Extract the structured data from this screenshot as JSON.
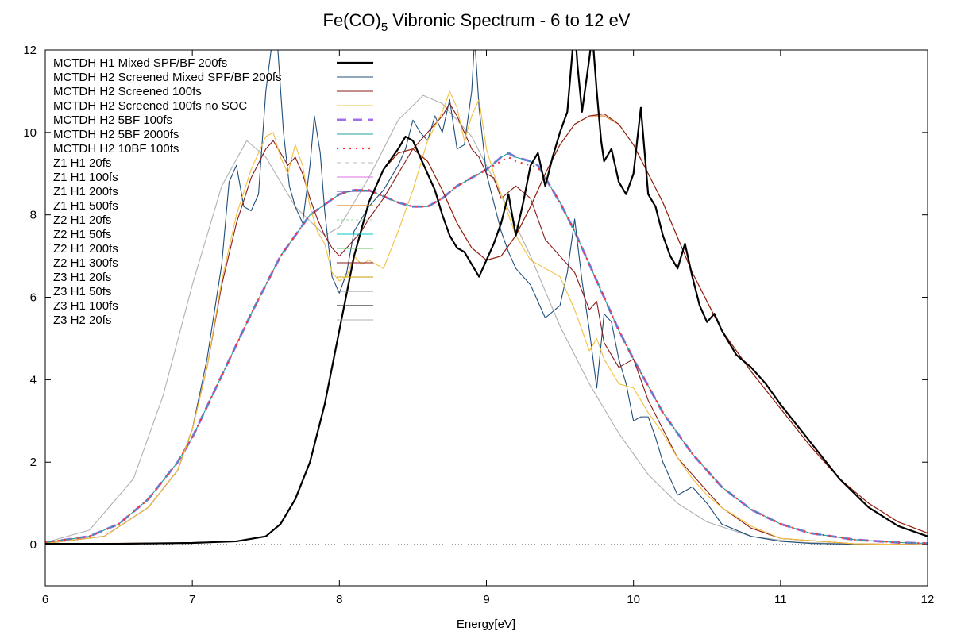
{
  "chart_data": {
    "type": "line",
    "title_main": "Fe(CO)",
    "title_sub": "5",
    "title_rest": " Vibronic Spectrum - 6 to 12 eV",
    "xlabel": "Energy[eV]",
    "ylabel": "",
    "xlim": [
      6,
      12
    ],
    "ylim": [
      -1,
      12
    ],
    "xticks": [
      6,
      7,
      8,
      9,
      10,
      11,
      12
    ],
    "yticks": [
      0,
      2,
      4,
      6,
      8,
      10,
      12
    ],
    "grid": false,
    "legend_position": "top-left",
    "zero_line": true,
    "series": [
      {
        "name": "MCTDH H1 Mixed SPF/BF 200fs",
        "color": "#000000",
        "dash": "solid",
        "width": 2.2,
        "group": "H1",
        "x": [
          6.0,
          6.5,
          7.0,
          7.3,
          7.5,
          7.6,
          7.7,
          7.8,
          7.9,
          8.0,
          8.1,
          8.2,
          8.3,
          8.4,
          8.45,
          8.5,
          8.55,
          8.6,
          8.65,
          8.7,
          8.75,
          8.8,
          8.85,
          8.9,
          8.95,
          9.0,
          9.05,
          9.1,
          9.15,
          9.2,
          9.25,
          9.3,
          9.35,
          9.4,
          9.45,
          9.5,
          9.55,
          9.6,
          9.62,
          9.65,
          9.7,
          9.72,
          9.75,
          9.78,
          9.8,
          9.85,
          9.9,
          9.95,
          10.0,
          10.05,
          10.1,
          10.15,
          10.2,
          10.25,
          10.3,
          10.35,
          10.4,
          10.45,
          10.5,
          10.55,
          10.6,
          10.65,
          10.7,
          10.8,
          10.9,
          11.0,
          11.2,
          11.4,
          11.6,
          11.8,
          12.0
        ],
        "y": [
          0.02,
          0.02,
          0.04,
          0.08,
          0.2,
          0.5,
          1.1,
          2.0,
          3.4,
          5.2,
          7.0,
          8.3,
          9.1,
          9.6,
          9.9,
          9.8,
          9.4,
          9.0,
          8.6,
          8.0,
          7.5,
          7.2,
          7.1,
          6.8,
          6.5,
          6.9,
          7.3,
          7.8,
          8.5,
          7.5,
          8.3,
          9.2,
          9.5,
          8.7,
          9.4,
          10.0,
          10.5,
          12.6,
          11.6,
          10.5,
          11.8,
          12.4,
          11.0,
          9.8,
          9.3,
          9.6,
          8.8,
          8.5,
          9.0,
          10.6,
          8.5,
          8.2,
          7.5,
          7.0,
          6.7,
          7.3,
          6.5,
          5.8,
          5.4,
          5.6,
          5.2,
          4.9,
          4.6,
          4.3,
          3.9,
          3.4,
          2.5,
          1.6,
          0.9,
          0.45,
          0.2
        ]
      },
      {
        "name": "MCTDH H2 Screened Mixed SPF/BF 200fs",
        "color": "#1f4e79",
        "dash": "solid",
        "width": 1.1,
        "group": "H2",
        "x": [
          6.0,
          6.4,
          6.7,
          6.9,
          7.0,
          7.1,
          7.2,
          7.25,
          7.3,
          7.35,
          7.4,
          7.45,
          7.5,
          7.55,
          7.58,
          7.62,
          7.66,
          7.7,
          7.75,
          7.8,
          7.83,
          7.87,
          7.9,
          7.95,
          8.0,
          8.05,
          8.1,
          8.15,
          8.2,
          8.3,
          8.4,
          8.45,
          8.5,
          8.55,
          8.6,
          8.65,
          8.7,
          8.75,
          8.8,
          8.85,
          8.9,
          8.92,
          8.95,
          9.0,
          9.05,
          9.1,
          9.15,
          9.2,
          9.3,
          9.4,
          9.5,
          9.55,
          9.6,
          9.65,
          9.7,
          9.75,
          9.8,
          9.85,
          9.9,
          9.95,
          10.0,
          10.05,
          10.1,
          10.15,
          10.2,
          10.3,
          10.4,
          10.5,
          10.6,
          10.8,
          11.0,
          11.2,
          11.5,
          12.0
        ],
        "y": [
          0.03,
          0.2,
          0.9,
          1.8,
          2.8,
          4.5,
          6.8,
          8.8,
          9.2,
          8.2,
          8.1,
          8.5,
          11.0,
          12.4,
          12.1,
          10.0,
          8.7,
          8.2,
          7.8,
          9.2,
          10.4,
          9.5,
          8.1,
          6.5,
          6.1,
          6.6,
          7.6,
          7.9,
          8.2,
          8.6,
          9.2,
          9.6,
          10.3,
          10.0,
          9.8,
          10.4,
          10.0,
          10.8,
          9.6,
          9.7,
          11.0,
          12.3,
          10.6,
          9.0,
          8.3,
          7.6,
          7.1,
          6.7,
          6.3,
          5.5,
          5.8,
          6.6,
          7.9,
          6.4,
          5.2,
          3.8,
          5.6,
          5.4,
          4.5,
          3.9,
          3.0,
          3.1,
          3.1,
          2.6,
          2.0,
          1.2,
          1.4,
          1.0,
          0.5,
          0.2,
          0.08,
          0.03,
          0.01,
          0.0
        ]
      },
      {
        "name": "MCTDH H2 Screened 100fs",
        "color": "#8b1a1a",
        "dash": "solid",
        "width": 1.1,
        "group": "H2",
        "x": [
          6.0,
          6.4,
          6.7,
          6.9,
          7.0,
          7.1,
          7.2,
          7.3,
          7.4,
          7.5,
          7.55,
          7.6,
          7.65,
          7.7,
          7.75,
          7.8,
          7.85,
          7.9,
          7.95,
          8.0,
          8.05,
          8.1,
          8.15,
          8.2,
          8.3,
          8.4,
          8.5,
          8.6,
          8.7,
          8.75,
          8.8,
          8.85,
          8.9,
          8.95,
          9.0,
          9.05,
          9.1,
          9.2,
          9.3,
          9.4,
          9.5,
          9.6,
          9.7,
          9.75,
          9.8,
          9.9,
          10.0,
          10.1,
          10.2,
          10.3,
          10.4,
          10.5,
          10.6,
          10.8,
          11.0,
          11.5,
          12.0
        ],
        "y": [
          0.03,
          0.2,
          0.9,
          1.8,
          2.8,
          4.3,
          6.3,
          7.8,
          8.9,
          9.6,
          9.8,
          9.5,
          9.2,
          9.4,
          9.0,
          8.4,
          7.9,
          7.5,
          7.2,
          7.0,
          7.2,
          7.4,
          7.6,
          7.9,
          8.4,
          9.0,
          9.6,
          10.0,
          10.4,
          10.7,
          10.4,
          10.0,
          9.6,
          9.4,
          9.0,
          8.9,
          8.4,
          8.7,
          8.4,
          7.4,
          7.0,
          6.6,
          5.7,
          5.9,
          4.9,
          4.3,
          4.5,
          3.5,
          2.8,
          2.1,
          1.7,
          1.3,
          0.9,
          0.4,
          0.15,
          0.02,
          0.0
        ]
      },
      {
        "name": "MCTDH H2 Screened 100fs no SOC",
        "color": "#f2c040",
        "dash": "solid",
        "width": 1.1,
        "group": "H2",
        "x": [
          6.0,
          6.4,
          6.7,
          6.9,
          7.0,
          7.1,
          7.2,
          7.3,
          7.4,
          7.5,
          7.55,
          7.6,
          7.65,
          7.7,
          7.75,
          7.8,
          7.85,
          7.9,
          7.95,
          8.0,
          8.05,
          8.1,
          8.15,
          8.2,
          8.3,
          8.4,
          8.5,
          8.6,
          8.7,
          8.75,
          8.8,
          8.85,
          8.9,
          8.95,
          9.0,
          9.05,
          9.1,
          9.2,
          9.3,
          9.4,
          9.5,
          9.6,
          9.7,
          9.75,
          9.8,
          9.9,
          10.0,
          10.1,
          10.2,
          10.3,
          10.4,
          10.5,
          10.6,
          10.8,
          11.0,
          11.5,
          12.0
        ],
        "y": [
          0.03,
          0.2,
          0.9,
          1.8,
          2.8,
          4.3,
          6.4,
          8.0,
          9.1,
          9.9,
          10.0,
          9.4,
          9.0,
          9.7,
          9.2,
          8.2,
          7.6,
          7.3,
          6.6,
          6.4,
          6.5,
          7.0,
          6.8,
          6.9,
          6.7,
          7.6,
          8.6,
          9.8,
          10.5,
          11.0,
          10.6,
          9.8,
          10.4,
          10.8,
          9.6,
          9.0,
          8.5,
          7.5,
          6.9,
          6.7,
          6.5,
          5.7,
          4.7,
          5.0,
          4.5,
          3.9,
          3.8,
          3.2,
          2.7,
          2.1,
          1.6,
          1.2,
          0.9,
          0.45,
          0.15,
          0.02,
          0.0
        ]
      },
      {
        "name": "MCTDH H2 5BF 100fs",
        "color": "#a070f0",
        "dash": "12,8",
        "width": 3,
        "group": "B",
        "x": [
          6.0,
          6.3,
          6.5,
          6.7,
          6.9,
          7.0,
          7.2,
          7.4,
          7.6,
          7.8,
          8.0,
          8.1,
          8.2,
          8.3,
          8.4,
          8.5,
          8.6,
          8.7,
          8.8,
          8.9,
          9.0,
          9.1,
          9.15,
          9.2,
          9.3,
          9.35,
          9.4,
          9.5,
          9.6,
          9.7,
          9.8,
          9.9,
          10.0,
          10.2,
          10.4,
          10.6,
          10.8,
          11.0,
          11.2,
          11.5,
          11.8,
          12.0
        ],
        "y": [
          0.05,
          0.2,
          0.5,
          1.1,
          2.0,
          2.6,
          4.1,
          5.6,
          7.0,
          8.0,
          8.5,
          8.6,
          8.6,
          8.45,
          8.3,
          8.2,
          8.2,
          8.4,
          8.7,
          8.9,
          9.1,
          9.4,
          9.5,
          9.4,
          9.3,
          9.2,
          8.9,
          8.3,
          7.6,
          6.8,
          6.0,
          5.2,
          4.5,
          3.2,
          2.2,
          1.4,
          0.85,
          0.5,
          0.28,
          0.12,
          0.05,
          0.03
        ]
      },
      {
        "name": "MCTDH H2 5BF 2000fs",
        "color": "#20a0a0",
        "dash": "solid",
        "width": 1.1,
        "group": "B",
        "x": [
          6.0,
          6.3,
          6.5,
          6.7,
          6.9,
          7.0,
          7.2,
          7.4,
          7.6,
          7.8,
          8.0,
          8.1,
          8.2,
          8.3,
          8.4,
          8.5,
          8.6,
          8.7,
          8.8,
          8.9,
          9.0,
          9.1,
          9.15,
          9.2,
          9.3,
          9.35,
          9.4,
          9.5,
          9.6,
          9.7,
          9.8,
          9.9,
          10.0,
          10.2,
          10.4,
          10.6,
          10.8,
          11.0,
          11.2,
          11.5,
          11.8,
          12.0
        ],
        "y": [
          0.05,
          0.2,
          0.5,
          1.1,
          2.0,
          2.6,
          4.1,
          5.6,
          7.0,
          8.0,
          8.5,
          8.6,
          8.6,
          8.45,
          8.3,
          8.2,
          8.2,
          8.4,
          8.7,
          8.9,
          9.1,
          9.4,
          9.5,
          9.4,
          9.3,
          9.2,
          8.9,
          8.3,
          7.6,
          6.8,
          6.0,
          5.2,
          4.5,
          3.2,
          2.2,
          1.4,
          0.85,
          0.5,
          0.28,
          0.12,
          0.05,
          0.03
        ]
      },
      {
        "name": "MCTDH H2 10BF 100fs",
        "color": "#ff3030",
        "dash": "2,6",
        "width": 2.2,
        "group": "B",
        "x": [
          6.0,
          6.3,
          6.5,
          6.7,
          6.9,
          7.0,
          7.2,
          7.4,
          7.6,
          7.8,
          8.0,
          8.1,
          8.2,
          8.3,
          8.4,
          8.5,
          8.6,
          8.7,
          8.8,
          8.9,
          9.0,
          9.1,
          9.15,
          9.2,
          9.3,
          9.35,
          9.4,
          9.5,
          9.6,
          9.7,
          9.8,
          9.9,
          10.0,
          10.2,
          10.4,
          10.6,
          10.8,
          11.0,
          11.2,
          11.5,
          11.8,
          12.0
        ],
        "y": [
          0.05,
          0.2,
          0.5,
          1.1,
          2.0,
          2.6,
          4.1,
          5.6,
          7.0,
          8.0,
          8.5,
          8.6,
          8.6,
          8.45,
          8.3,
          8.2,
          8.2,
          8.4,
          8.7,
          8.9,
          9.1,
          9.3,
          9.4,
          9.3,
          9.2,
          9.15,
          8.9,
          8.3,
          7.6,
          6.8,
          6.0,
          5.2,
          4.5,
          3.2,
          2.2,
          1.4,
          0.85,
          0.5,
          0.28,
          0.12,
          0.05,
          0.03
        ]
      },
      {
        "name": "Z1 H1 20fs",
        "color": "#bbbbbb",
        "dash": "6,4",
        "width": 1,
        "group": "none",
        "x": [],
        "y": []
      },
      {
        "name": "Z1 H1 100fs",
        "color": "#e070e0",
        "dash": "solid",
        "width": 1,
        "group": "none",
        "x": [],
        "y": []
      },
      {
        "name": "Z1 H1 200fs",
        "color": "#6a3fa0",
        "dash": "solid",
        "width": 1,
        "group": "none",
        "x": [],
        "y": []
      },
      {
        "name": "Z1 H1 500fs",
        "color": "#e08a20",
        "dash": "solid",
        "width": 1.2,
        "group": "G",
        "x": [
          6.0,
          7.0,
          7.3,
          7.5,
          7.6,
          7.7,
          7.8,
          7.9,
          8.0,
          8.1,
          8.2,
          8.3,
          8.4,
          8.5,
          8.6,
          8.7,
          8.8,
          8.9,
          9.0,
          9.1,
          9.2,
          9.3,
          9.4,
          9.5,
          9.6,
          9.7,
          9.8,
          9.9,
          10.0,
          10.2,
          10.4,
          10.6,
          10.8,
          11.0,
          11.2,
          11.4,
          11.6,
          11.8,
          12.0
        ],
        "y": [
          0.02,
          0.04,
          0.08,
          0.2,
          0.5,
          1.1,
          2.0,
          3.4,
          5.2,
          7.0,
          8.3,
          9.1,
          9.5,
          9.6,
          9.3,
          8.6,
          7.8,
          7.2,
          6.9,
          7.0,
          7.5,
          8.2,
          9.0,
          9.7,
          10.2,
          10.4,
          10.4,
          10.2,
          9.7,
          8.3,
          6.6,
          5.2,
          4.2,
          3.3,
          2.4,
          1.6,
          1.0,
          0.55,
          0.28
        ]
      },
      {
        "name": "Z2 H1 20fs",
        "color": "#90d890",
        "dash": "3,3",
        "width": 1,
        "group": "none",
        "x": [],
        "y": []
      },
      {
        "name": "Z2 H1 50fs",
        "color": "#00c8c8",
        "dash": "solid",
        "width": 1,
        "group": "none",
        "x": [],
        "y": []
      },
      {
        "name": "Z2 H1 200fs",
        "color": "#60c060",
        "dash": "solid",
        "width": 1,
        "group": "none",
        "x": [],
        "y": []
      },
      {
        "name": "Z2 H1 300fs",
        "color": "#8b1a1a",
        "dash": "solid",
        "width": 1.1,
        "group": "G",
        "x": [
          6.0,
          7.0,
          7.3,
          7.5,
          7.6,
          7.7,
          7.8,
          7.9,
          8.0,
          8.1,
          8.2,
          8.3,
          8.4,
          8.5,
          8.6,
          8.7,
          8.8,
          8.9,
          9.0,
          9.1,
          9.2,
          9.3,
          9.4,
          9.5,
          9.6,
          9.7,
          9.8,
          9.9,
          10.0,
          10.2,
          10.4,
          10.6,
          10.8,
          11.0,
          11.2,
          11.4,
          11.6,
          11.8,
          12.0
        ],
        "y": [
          0.02,
          0.04,
          0.08,
          0.2,
          0.5,
          1.1,
          2.0,
          3.4,
          5.2,
          7.0,
          8.3,
          9.1,
          9.5,
          9.6,
          9.3,
          8.6,
          7.8,
          7.2,
          6.9,
          7.0,
          7.5,
          8.2,
          9.0,
          9.7,
          10.2,
          10.4,
          10.45,
          10.2,
          9.7,
          8.3,
          6.6,
          5.2,
          4.2,
          3.3,
          2.4,
          1.6,
          1.0,
          0.55,
          0.28
        ]
      },
      {
        "name": "Z3 H1 20fs",
        "color": "#c8a000",
        "dash": "solid",
        "width": 1,
        "group": "none",
        "x": [],
        "y": []
      },
      {
        "name": "Z3 H1 50fs",
        "color": "#909090",
        "dash": "solid",
        "width": 1,
        "group": "none",
        "x": [],
        "y": []
      },
      {
        "name": "Z3 H1 100fs",
        "color": "#000000",
        "dash": "solid",
        "width": 1,
        "group": "none",
        "x": [],
        "y": []
      },
      {
        "name": "Z3 H2 20fs",
        "color": "#b0b0b0",
        "dash": "solid",
        "width": 1.1,
        "group": "Z",
        "x": [
          6.0,
          6.3,
          6.6,
          6.8,
          7.0,
          7.2,
          7.37,
          7.5,
          7.7,
          7.9,
          8.0,
          8.2,
          8.4,
          8.57,
          8.7,
          8.9,
          9.1,
          9.3,
          9.5,
          9.7,
          9.9,
          10.1,
          10.3,
          10.5,
          10.8,
          11.1,
          11.5,
          12.0
        ],
        "y": [
          0.05,
          0.35,
          1.6,
          3.6,
          6.3,
          8.7,
          9.8,
          9.4,
          8.2,
          7.5,
          7.7,
          8.9,
          10.3,
          10.9,
          10.7,
          9.9,
          8.5,
          7.0,
          5.3,
          3.9,
          2.7,
          1.7,
          1.0,
          0.55,
          0.2,
          0.06,
          0.01,
          0.0
        ]
      }
    ]
  }
}
